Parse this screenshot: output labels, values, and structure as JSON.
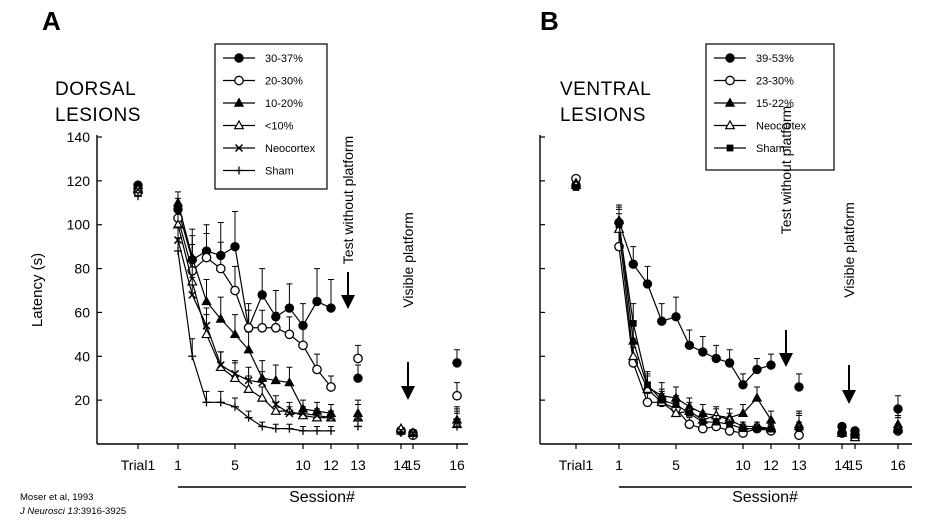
{
  "citation": {
    "line1": "Moser et al, 1993",
    "journal": "J Neurosci",
    "volume": "13",
    "pages": ":3916-3925"
  },
  "chart_data": [
    {
      "panel": "A",
      "type": "line",
      "title": "DORSAL LESIONS",
      "title_lines": [
        "DORSAL",
        "LESIONS"
      ],
      "ylabel": "Latency (s)",
      "xlabel": "Session#",
      "ylim": [
        0,
        140
      ],
      "yticks": [
        20,
        40,
        60,
        80,
        100,
        120,
        140
      ],
      "xticks": [
        "Trial1",
        "1",
        "5",
        "10",
        "12",
        "13",
        "14",
        "15",
        "16"
      ],
      "legend_position": "top-center",
      "annotations": [
        "Test without platform",
        "Visible platform"
      ],
      "series": [
        {
          "name": "30-37%",
          "marker": "filled-circle",
          "trial1": 118,
          "x": [
            1,
            2,
            3,
            4,
            5,
            6,
            7,
            8,
            9,
            10,
            11,
            12
          ],
          "values": [
            107,
            84,
            88,
            86,
            90,
            53,
            68,
            58,
            62,
            54,
            65,
            62
          ],
          "errors": [
            5,
            14,
            12,
            15,
            16,
            11,
            12,
            12,
            11,
            10,
            15,
            13
          ],
          "s13": 30,
          "s14": 6,
          "s15": 5,
          "s16": 37
        },
        {
          "name": "20-30%",
          "marker": "open-circle",
          "trial1": 115,
          "x": [
            1,
            2,
            3,
            4,
            5,
            6,
            7,
            8,
            9,
            10,
            11,
            12
          ],
          "values": [
            103,
            79,
            85,
            80,
            70,
            53,
            53,
            53,
            50,
            45,
            34,
            26
          ],
          "errors": [
            6,
            12,
            11,
            12,
            11,
            8,
            8,
            7,
            8,
            8,
            7,
            5
          ],
          "s13": 39,
          "s14": 6,
          "s15": 4,
          "s16": 22
        },
        {
          "name": "10-20%",
          "marker": "filled-triangle",
          "trial1": 118,
          "x": [
            1,
            2,
            3,
            4,
            5,
            6,
            7,
            8,
            9,
            10,
            11,
            12
          ],
          "values": [
            110,
            85,
            65,
            57,
            50,
            43,
            30,
            29,
            28,
            16,
            15,
            14
          ],
          "errors": [
            5,
            10,
            10,
            10,
            9,
            8,
            8,
            7,
            7,
            4,
            4,
            4
          ],
          "s13": 14,
          "s14": 6,
          "s15": 5,
          "s16": 11
        },
        {
          "name": "<10%",
          "marker": "open-triangle",
          "trial1": 116,
          "x": [
            1,
            2,
            3,
            4,
            5,
            6,
            7,
            8,
            9,
            10,
            11,
            12
          ],
          "values": [
            100,
            74,
            50,
            35,
            30,
            25,
            21,
            15,
            15,
            13,
            12,
            12
          ],
          "errors": [
            6,
            10,
            9,
            7,
            7,
            6,
            5,
            4,
            4,
            3,
            3,
            3
          ],
          "s13": 12,
          "s14": 7,
          "s15": 5,
          "s16": 9
        },
        {
          "name": "Neocortex",
          "marker": "cross",
          "trial1": 116,
          "x": [
            1,
            2,
            3,
            4,
            5,
            6,
            7,
            8,
            9,
            10,
            11,
            12
          ],
          "values": [
            93,
            68,
            54,
            36,
            32,
            29,
            28,
            18,
            14,
            14,
            13,
            12
          ],
          "errors": [
            6,
            8,
            8,
            6,
            6,
            6,
            5,
            4,
            3,
            3,
            3,
            3
          ],
          "s13": 12,
          "s14": 6,
          "s15": 5,
          "s16": 10
        },
        {
          "name": "Sham",
          "marker": "plus",
          "trial1": 113,
          "x": [
            1,
            2,
            3,
            4,
            5,
            6,
            7,
            8,
            9,
            10,
            11,
            12
          ],
          "values": [
            88,
            40,
            19,
            19,
            17,
            12,
            8,
            7,
            7,
            6,
            6,
            6
          ],
          "errors": [
            6,
            8,
            5,
            5,
            4,
            3,
            2,
            2,
            2,
            2,
            2,
            2
          ],
          "s13": 8,
          "s14": 5,
          "s15": 4,
          "s16": 8
        }
      ]
    },
    {
      "panel": "B",
      "type": "line",
      "title": "VENTRAL LESIONS",
      "title_lines": [
        "VENTRAL",
        "LESIONS"
      ],
      "ylabel": "",
      "xlabel": "Session#",
      "ylim": [
        0,
        140
      ],
      "yticks": [
        20,
        40,
        60,
        80,
        100,
        120,
        140
      ],
      "xticks": [
        "Trial1",
        "1",
        "5",
        "10",
        "12",
        "13",
        "14",
        "15",
        "16"
      ],
      "legend_position": "top-center",
      "annotations": [
        "Test without platform",
        "Visible platform"
      ],
      "series": [
        {
          "name": "39-53%",
          "marker": "filled-circle",
          "trial1": 118,
          "x": [
            1,
            2,
            3,
            4,
            5,
            6,
            7,
            8,
            9,
            10,
            11,
            12
          ],
          "values": [
            101,
            82,
            73,
            56,
            58,
            45,
            42,
            39,
            37,
            27,
            34,
            36
          ],
          "errors": [
            7,
            8,
            8,
            8,
            9,
            7,
            7,
            6,
            6,
            5,
            5,
            5
          ],
          "s13": 26,
          "s14": 8,
          "s15": 6,
          "s16": 16
        },
        {
          "name": "23-30%",
          "marker": "open-circle",
          "trial1": 121,
          "x": [
            1,
            2,
            3,
            4,
            5,
            6,
            7,
            8,
            9,
            10,
            11,
            12
          ],
          "values": [
            90,
            37,
            19,
            19,
            16,
            9,
            7,
            8,
            6,
            5,
            7,
            6
          ],
          "errors": [
            7,
            7,
            4,
            4,
            4,
            3,
            2,
            2,
            2,
            2,
            2,
            2
          ],
          "s13": 4,
          "s14": 5,
          "s15": 4,
          "s16": 6
        },
        {
          "name": "15-22%",
          "marker": "filled-triangle",
          "trial1": 119,
          "x": [
            1,
            2,
            3,
            4,
            5,
            6,
            7,
            8,
            9,
            10,
            11,
            12
          ],
          "values": [
            102,
            47,
            26,
            22,
            21,
            17,
            14,
            13,
            12,
            14,
            21,
            11
          ],
          "errors": [
            7,
            8,
            6,
            6,
            5,
            4,
            4,
            4,
            4,
            4,
            5,
            4
          ],
          "s13": 9,
          "s14": 6,
          "s15": 4,
          "s16": 9
        },
        {
          "name": "Neocortex",
          "marker": "open-triangle",
          "trial1": 118,
          "x": [
            1,
            2,
            3,
            4,
            5,
            6,
            7,
            8,
            9,
            10,
            11,
            12
          ],
          "values": [
            98,
            40,
            25,
            19,
            14,
            15,
            11,
            13,
            11,
            8,
            8,
            7
          ],
          "errors": [
            7,
            8,
            6,
            5,
            4,
            4,
            3,
            3,
            3,
            2,
            2,
            2
          ],
          "s13": 8,
          "s14": 5,
          "s15": 3,
          "s16": 7
        },
        {
          "name": "Sham",
          "marker": "filled-square",
          "trial1": 117,
          "x": [
            1,
            2,
            3,
            4,
            5,
            6,
            7,
            8,
            9,
            10,
            11,
            12
          ],
          "values": [
            100,
            55,
            27,
            20,
            18,
            14,
            10,
            10,
            9,
            7,
            7,
            7
          ],
          "errors": [
            7,
            9,
            6,
            5,
            4,
            3,
            3,
            3,
            2,
            2,
            2,
            2
          ],
          "s13": 7,
          "s14": 5,
          "s15": 4,
          "s16": 6
        }
      ]
    }
  ]
}
